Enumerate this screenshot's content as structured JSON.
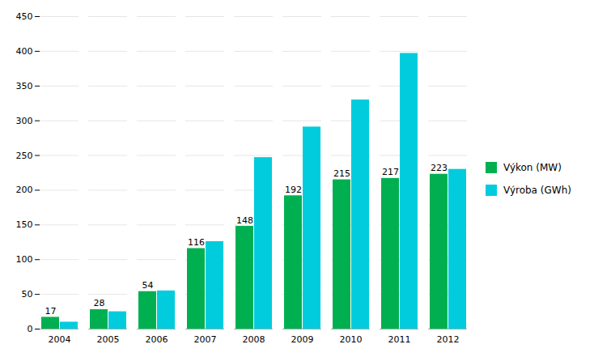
{
  "chart_data": {
    "type": "bar",
    "categories": [
      "2004",
      "2005",
      "2006",
      "2007",
      "2008",
      "2009",
      "2010",
      "2011",
      "2012"
    ],
    "series": [
      {
        "name": "Výkon (MW)",
        "color": "#00b050",
        "values": [
          17,
          28,
          54,
          116,
          148,
          192,
          215,
          217,
          223
        ],
        "data_labels": true
      },
      {
        "name": "Výroba (GWh)",
        "color": "#00ccdd",
        "values": [
          10,
          25,
          55,
          126,
          247,
          291,
          330,
          397,
          230
        ]
      }
    ],
    "ylim": [
      0,
      450
    ],
    "yticks": [
      0,
      50,
      100,
      150,
      200,
      250,
      300,
      350,
      400,
      450
    ],
    "grid": true,
    "legend": "right"
  }
}
